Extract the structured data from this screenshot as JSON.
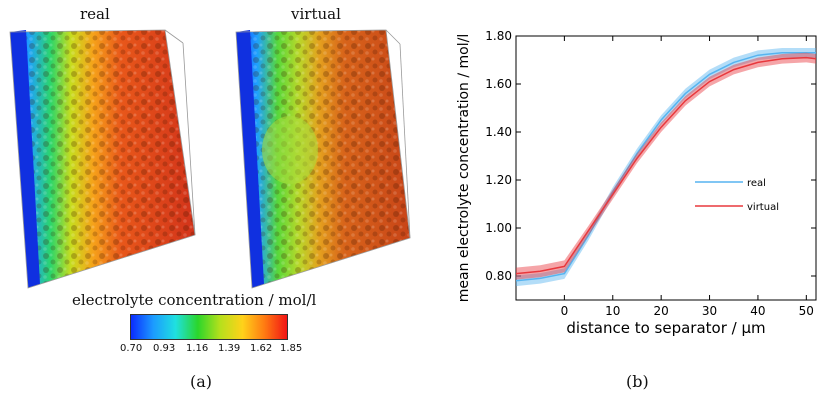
{
  "panel_a": {
    "volume_titles": [
      "real",
      "virtual"
    ],
    "colorbar": {
      "title": "electrolyte concentration / mol/l",
      "ticks": [
        "0.70",
        "0.93",
        "1.16",
        "1.39",
        "1.62",
        "1.85"
      ],
      "colors": [
        "#0b2cff",
        "#1c9bff",
        "#1fe0e0",
        "#2bd62b",
        "#b6e01c",
        "#ffd21a",
        "#ff7a12",
        "#f21414"
      ]
    },
    "caption": "(a)"
  },
  "panel_b": {
    "caption": "(b)"
  },
  "chart_data": {
    "type": "line",
    "title": "",
    "xlabel": "distance to separator /  μm",
    "ylabel": "mean electrolyte concentration / mol/l",
    "xlim": [
      -10,
      52
    ],
    "ylim": [
      0.7,
      1.8
    ],
    "xticks": [
      0,
      10,
      20,
      30,
      40,
      50
    ],
    "xtick_labels": [
      "0",
      "10",
      "20",
      "30",
      "40",
      "50"
    ],
    "yticks": [
      0.8,
      1.0,
      1.2,
      1.4,
      1.6,
      1.8
    ],
    "ytick_labels": [
      "0.80",
      "1.00",
      "1.20",
      "1.40",
      "1.60",
      "1.80"
    ],
    "legend_position": "right-middle",
    "series": [
      {
        "name": "real",
        "color": "#56b4f0",
        "x": [
          -10,
          -5,
          0,
          5,
          10,
          15,
          20,
          25,
          30,
          35,
          40,
          45,
          50,
          52
        ],
        "y": [
          0.78,
          0.79,
          0.81,
          0.97,
          1.15,
          1.31,
          1.45,
          1.56,
          1.64,
          1.69,
          1.72,
          1.73,
          1.73,
          1.73
        ],
        "band": [
          0.022,
          0.022,
          0.022,
          0.02,
          0.02,
          0.02,
          0.02,
          0.02,
          0.02,
          0.02,
          0.02,
          0.02,
          0.02,
          0.02
        ]
      },
      {
        "name": "virtual",
        "color": "#e8383d",
        "x": [
          -10,
          -5,
          0,
          5,
          10,
          15,
          20,
          25,
          30,
          35,
          40,
          45,
          50,
          52
        ],
        "y": [
          0.81,
          0.82,
          0.84,
          0.99,
          1.14,
          1.29,
          1.42,
          1.53,
          1.61,
          1.66,
          1.69,
          1.705,
          1.71,
          1.705
        ],
        "band": [
          0.025,
          0.025,
          0.025,
          0.02,
          0.02,
          0.02,
          0.02,
          0.02,
          0.02,
          0.02,
          0.02,
          0.02,
          0.02,
          0.02
        ]
      }
    ]
  }
}
